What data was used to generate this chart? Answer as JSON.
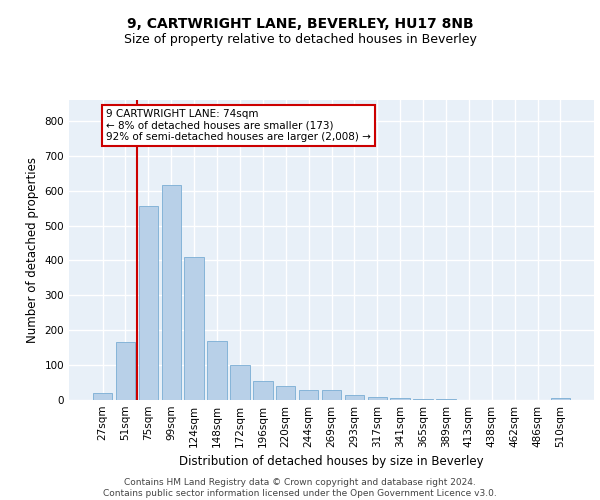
{
  "title": "9, CARTWRIGHT LANE, BEVERLEY, HU17 8NB",
  "subtitle": "Size of property relative to detached houses in Beverley",
  "xlabel": "Distribution of detached houses by size in Beverley",
  "ylabel": "Number of detached properties",
  "bar_color": "#b8d0e8",
  "bar_edge_color": "#7aadd4",
  "background_color": "#e8f0f8",
  "grid_color": "#ffffff",
  "categories": [
    "27sqm",
    "51sqm",
    "75sqm",
    "99sqm",
    "124sqm",
    "148sqm",
    "172sqm",
    "196sqm",
    "220sqm",
    "244sqm",
    "269sqm",
    "293sqm",
    "317sqm",
    "341sqm",
    "365sqm",
    "389sqm",
    "413sqm",
    "438sqm",
    "462sqm",
    "486sqm",
    "510sqm"
  ],
  "values": [
    20,
    165,
    555,
    615,
    410,
    170,
    100,
    55,
    40,
    30,
    30,
    13,
    10,
    7,
    4,
    2,
    0,
    0,
    0,
    0,
    5
  ],
  "ylim": [
    0,
    860
  ],
  "yticks": [
    0,
    100,
    200,
    300,
    400,
    500,
    600,
    700,
    800
  ],
  "marker_bin_index": 2,
  "vline_color": "#cc0000",
  "annotation_lines": [
    "9 CARTWRIGHT LANE: 74sqm",
    "← 8% of detached houses are smaller (173)",
    "92% of semi-detached houses are larger (2,008) →"
  ],
  "title_fontsize": 10,
  "subtitle_fontsize": 9,
  "xlabel_fontsize": 8.5,
  "ylabel_fontsize": 8.5,
  "tick_fontsize": 7.5,
  "annotation_fontsize": 7.5,
  "footer_fontsize": 6.5,
  "footer_text": "Contains HM Land Registry data © Crown copyright and database right 2024.\nContains public sector information licensed under the Open Government Licence v3.0."
}
